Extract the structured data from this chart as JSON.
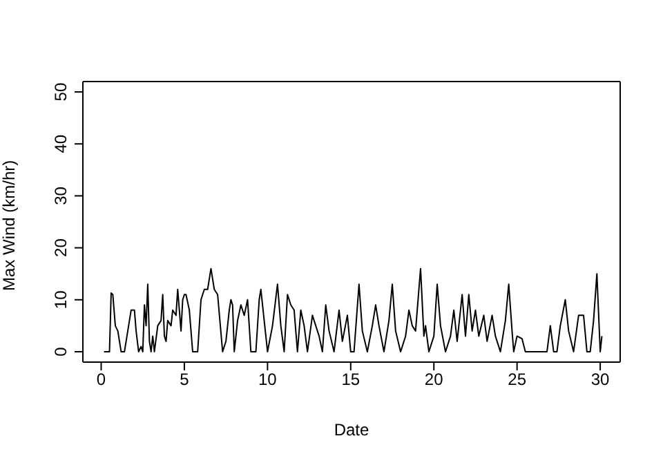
{
  "chart_data": {
    "type": "line",
    "xlabel": "Date",
    "ylabel": "Max Wind (km/hr)",
    "series": [
      {
        "color": "#000000",
        "x": [
          0.17,
          0.5,
          0.6,
          0.7,
          0.85,
          1.0,
          1.2,
          1.4,
          1.6,
          1.8,
          2.0,
          2.1,
          2.25,
          2.4,
          2.5,
          2.6,
          2.7,
          2.8,
          2.9,
          3.0,
          3.1,
          3.2,
          3.4,
          3.6,
          3.7,
          3.8,
          3.9,
          4.0,
          4.2,
          4.3,
          4.5,
          4.6,
          4.7,
          4.8,
          4.9,
          5.0,
          5.1,
          5.3,
          5.5,
          5.8,
          6.0,
          6.2,
          6.4,
          6.6,
          6.8,
          7.0,
          7.3,
          7.5,
          7.7,
          7.8,
          7.9,
          8.0,
          8.2,
          8.4,
          8.6,
          8.8,
          9.0,
          9.3,
          9.5,
          9.6,
          9.8,
          10.0,
          10.3,
          10.6,
          10.8,
          11.0,
          11.2,
          11.4,
          11.6,
          11.8,
          12.0,
          12.2,
          12.4,
          12.7,
          12.9,
          13.1,
          13.3,
          13.5,
          13.7,
          14.0,
          14.3,
          14.5,
          14.8,
          15.0,
          15.2,
          15.5,
          15.7,
          16.0,
          16.3,
          16.5,
          16.7,
          17.0,
          17.3,
          17.5,
          17.7,
          18.0,
          18.3,
          18.5,
          18.7,
          18.9,
          19.2,
          19.4,
          19.5,
          19.7,
          20.0,
          20.2,
          20.4,
          20.7,
          21.0,
          21.2,
          21.4,
          21.7,
          21.9,
          22.1,
          22.3,
          22.5,
          22.7,
          23.0,
          23.2,
          23.5,
          23.7,
          24.0,
          24.3,
          24.5,
          24.7,
          24.8,
          25.0,
          25.3,
          25.5,
          26.0,
          26.8,
          27.0,
          27.2,
          27.4,
          27.6,
          27.9,
          28.1,
          28.4,
          28.7,
          29.0,
          29.2,
          29.4,
          29.6,
          29.8,
          30.0,
          30.1
        ],
        "values": [
          0,
          0,
          11.3,
          11,
          5,
          4,
          0,
          0,
          4,
          8,
          8,
          4,
          0,
          1,
          0,
          9,
          5,
          13,
          2,
          0,
          3,
          0,
          5,
          6,
          11,
          3,
          2,
          6,
          5,
          8,
          7,
          12,
          8,
          4,
          10,
          11,
          11,
          8,
          0,
          0,
          10,
          12,
          12,
          16,
          12,
          11,
          0,
          2,
          8,
          10,
          9,
          0,
          6,
          9,
          7,
          10,
          0,
          0,
          10,
          12,
          6,
          0,
          5,
          13,
          5,
          0,
          11,
          9,
          8,
          0,
          8,
          5,
          0,
          7,
          5,
          3,
          0,
          9,
          4,
          0,
          8,
          2,
          7,
          0,
          0,
          13,
          4,
          0,
          5,
          9,
          5,
          0,
          6,
          13,
          4,
          0,
          3,
          8,
          5,
          4,
          16,
          3,
          5,
          0,
          3,
          13,
          5,
          0,
          3,
          8,
          2,
          11,
          3,
          11,
          4,
          8,
          3,
          7,
          2,
          7,
          3,
          0,
          6,
          13,
          4,
          0,
          3,
          2.5,
          0,
          0,
          0,
          5,
          0,
          0,
          5,
          10,
          4,
          0,
          7,
          7,
          0,
          0,
          6,
          15,
          0,
          3
        ]
      }
    ],
    "xlim": [
      -1.1,
      31.2
    ],
    "ylim": [
      -2,
      52
    ],
    "xticks": [
      0,
      5,
      10,
      15,
      20,
      25,
      30
    ],
    "yticks": [
      0,
      10,
      20,
      30,
      40,
      50
    ],
    "grid": false,
    "marker": "none",
    "line_style": "solid"
  }
}
